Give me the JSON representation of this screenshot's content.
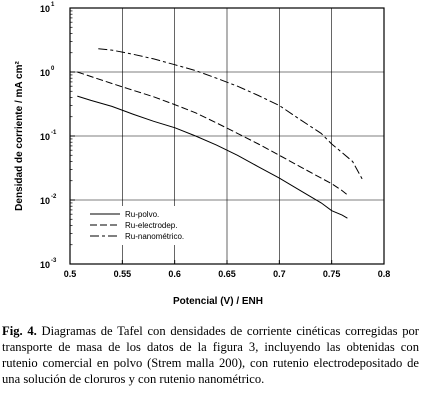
{
  "chart_data": {
    "type": "line",
    "xlabel": "Potencial (V) / ENH",
    "ylabel": "Densidad de corriente / mA cm²",
    "xlim": [
      0.5,
      0.8
    ],
    "ylim_log10": [
      -3,
      1
    ],
    "y_scale": "log",
    "grid": true,
    "x_ticks": [
      "0.5",
      "0.55",
      "0.6",
      "0.65",
      "0.7",
      "0.75",
      "0.8"
    ],
    "y_ticks": [
      {
        "value": 10,
        "base": "10",
        "exp": "1"
      },
      {
        "value": 1,
        "base": "10",
        "exp": "0"
      },
      {
        "value": 0.1,
        "base": "10",
        "exp": "-1"
      },
      {
        "value": 0.01,
        "base": "10",
        "exp": "-2"
      },
      {
        "value": 0.001,
        "base": "10",
        "exp": "-3"
      }
    ],
    "legend_position": "bottom-left",
    "series": [
      {
        "name": "Ru-polvo.",
        "dash": "solid",
        "x": [
          0.507,
          0.52,
          0.54,
          0.56,
          0.58,
          0.6,
          0.62,
          0.64,
          0.66,
          0.68,
          0.7,
          0.72,
          0.74,
          0.75,
          0.76,
          0.765
        ],
        "y": [
          0.42,
          0.36,
          0.29,
          0.22,
          0.17,
          0.135,
          0.1,
          0.072,
          0.05,
          0.033,
          0.022,
          0.014,
          0.009,
          0.0068,
          0.0058,
          0.0052
        ]
      },
      {
        "name": "Ru-electrodep.",
        "dash": "long",
        "x": [
          0.507,
          0.52,
          0.54,
          0.56,
          0.58,
          0.6,
          0.62,
          0.64,
          0.66,
          0.68,
          0.7,
          0.72,
          0.74,
          0.75,
          0.76,
          0.765
        ],
        "y": [
          1.0,
          0.85,
          0.66,
          0.52,
          0.41,
          0.31,
          0.23,
          0.16,
          0.11,
          0.075,
          0.05,
          0.033,
          0.022,
          0.018,
          0.014,
          0.012
        ]
      },
      {
        "name": "Ru-nanométrico.",
        "dash": "dashdot",
        "x": [
          0.527,
          0.54,
          0.56,
          0.58,
          0.6,
          0.62,
          0.64,
          0.66,
          0.68,
          0.7,
          0.72,
          0.74,
          0.75,
          0.76,
          0.77,
          0.78
        ],
        "y": [
          2.3,
          2.2,
          1.9,
          1.6,
          1.3,
          1.05,
          0.8,
          0.6,
          0.43,
          0.3,
          0.18,
          0.11,
          0.075,
          0.055,
          0.04,
          0.02
        ]
      }
    ]
  },
  "caption": {
    "fig_label": "Fig. 4.",
    "text": " Diagramas de Tafel con densidades de corriente cinéticas corregidas por transporte de masa de los datos de la figura 3, incluyendo las obtenidas con rutenio comercial en polvo (Strem malla 200), con rutenio electrodepositado de una solución de cloruros y con rutenio nanométrico."
  }
}
